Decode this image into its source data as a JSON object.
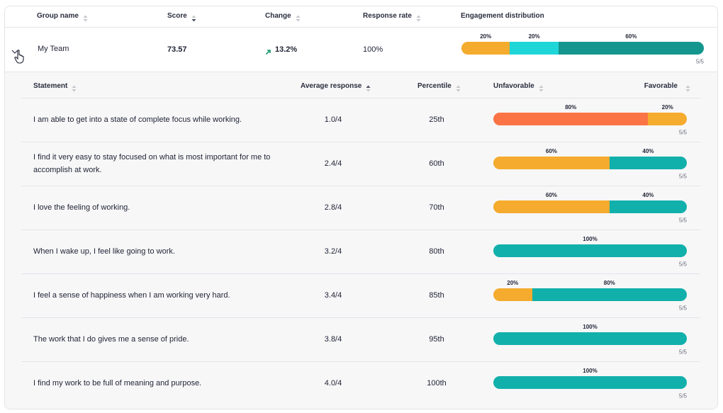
{
  "header": {
    "columns": [
      {
        "label": "Group name",
        "sort": "none"
      },
      {
        "label": "Score",
        "sort": "desc"
      },
      {
        "label": "Change",
        "sort": "none"
      },
      {
        "label": "Response rate",
        "sort": "none"
      },
      {
        "label": "Engagement distribution"
      }
    ]
  },
  "group": {
    "name": "My Team",
    "score": "73.57",
    "change": "13.2%",
    "response_rate": "100%",
    "distribution": {
      "segments": [
        {
          "value": 20,
          "label": "20%",
          "color": "#f5ab2d"
        },
        {
          "value": 20,
          "label": "20%",
          "color": "#1ed6d8"
        },
        {
          "value": 60,
          "label": "60%",
          "color": "#14968f"
        }
      ],
      "count": "5/5"
    }
  },
  "statements": {
    "columns": [
      {
        "label": "Statement",
        "sort": "none"
      },
      {
        "label": "Average response",
        "sort": "asc"
      },
      {
        "label": "Percentile",
        "sort": "none"
      },
      {
        "label": "Unfavorable",
        "sort": "none"
      },
      {
        "label": "Favorable",
        "sort": "none"
      }
    ],
    "rows": [
      {
        "statement": "I am able to get into a state of complete focus while working.",
        "average": "1.0/4",
        "percentile": "25th",
        "segments": [
          {
            "value": 80,
            "label": "80%",
            "color": "#fb7445"
          },
          {
            "value": 20,
            "label": "20%",
            "color": "#f5ab2d"
          }
        ],
        "count": "5/5"
      },
      {
        "statement": "I find it very easy to stay focused on what is most important for me to accomplish at work.",
        "average": "2.4/4",
        "percentile": "60th",
        "segments": [
          {
            "value": 60,
            "label": "60%",
            "color": "#f5ab2d"
          },
          {
            "value": 40,
            "label": "40%",
            "color": "#12b0ab"
          }
        ],
        "count": "5/5"
      },
      {
        "statement": "I love the feeling of working.",
        "average": "2.8/4",
        "percentile": "70th",
        "segments": [
          {
            "value": 60,
            "label": "60%",
            "color": "#f5ab2d"
          },
          {
            "value": 40,
            "label": "40%",
            "color": "#12b0ab"
          }
        ],
        "count": "5/5"
      },
      {
        "statement": "When I wake up, I feel like going to work.",
        "average": "3.2/4",
        "percentile": "80th",
        "segments": [
          {
            "value": 100,
            "label": "100%",
            "color": "#12b0ab"
          }
        ],
        "count": "5/5"
      },
      {
        "statement": "I feel a sense of happiness when I am working very hard.",
        "average": "3.4/4",
        "percentile": "85th",
        "segments": [
          {
            "value": 20,
            "label": "20%",
            "color": "#f5ab2d"
          },
          {
            "value": 80,
            "label": "80%",
            "color": "#12b0ab"
          }
        ],
        "count": "5/5"
      },
      {
        "statement": "The work that I do gives me a sense of pride.",
        "average": "3.8/4",
        "percentile": "95th",
        "segments": [
          {
            "value": 100,
            "label": "100%",
            "color": "#12b0ab"
          }
        ],
        "count": "5/5"
      },
      {
        "statement": "I find my work to be full of meaning and purpose.",
        "average": "4.0/4",
        "percentile": "100th",
        "segments": [
          {
            "value": 100,
            "label": "100%",
            "color": "#12b0ab"
          }
        ],
        "count": "5/5"
      }
    ]
  }
}
